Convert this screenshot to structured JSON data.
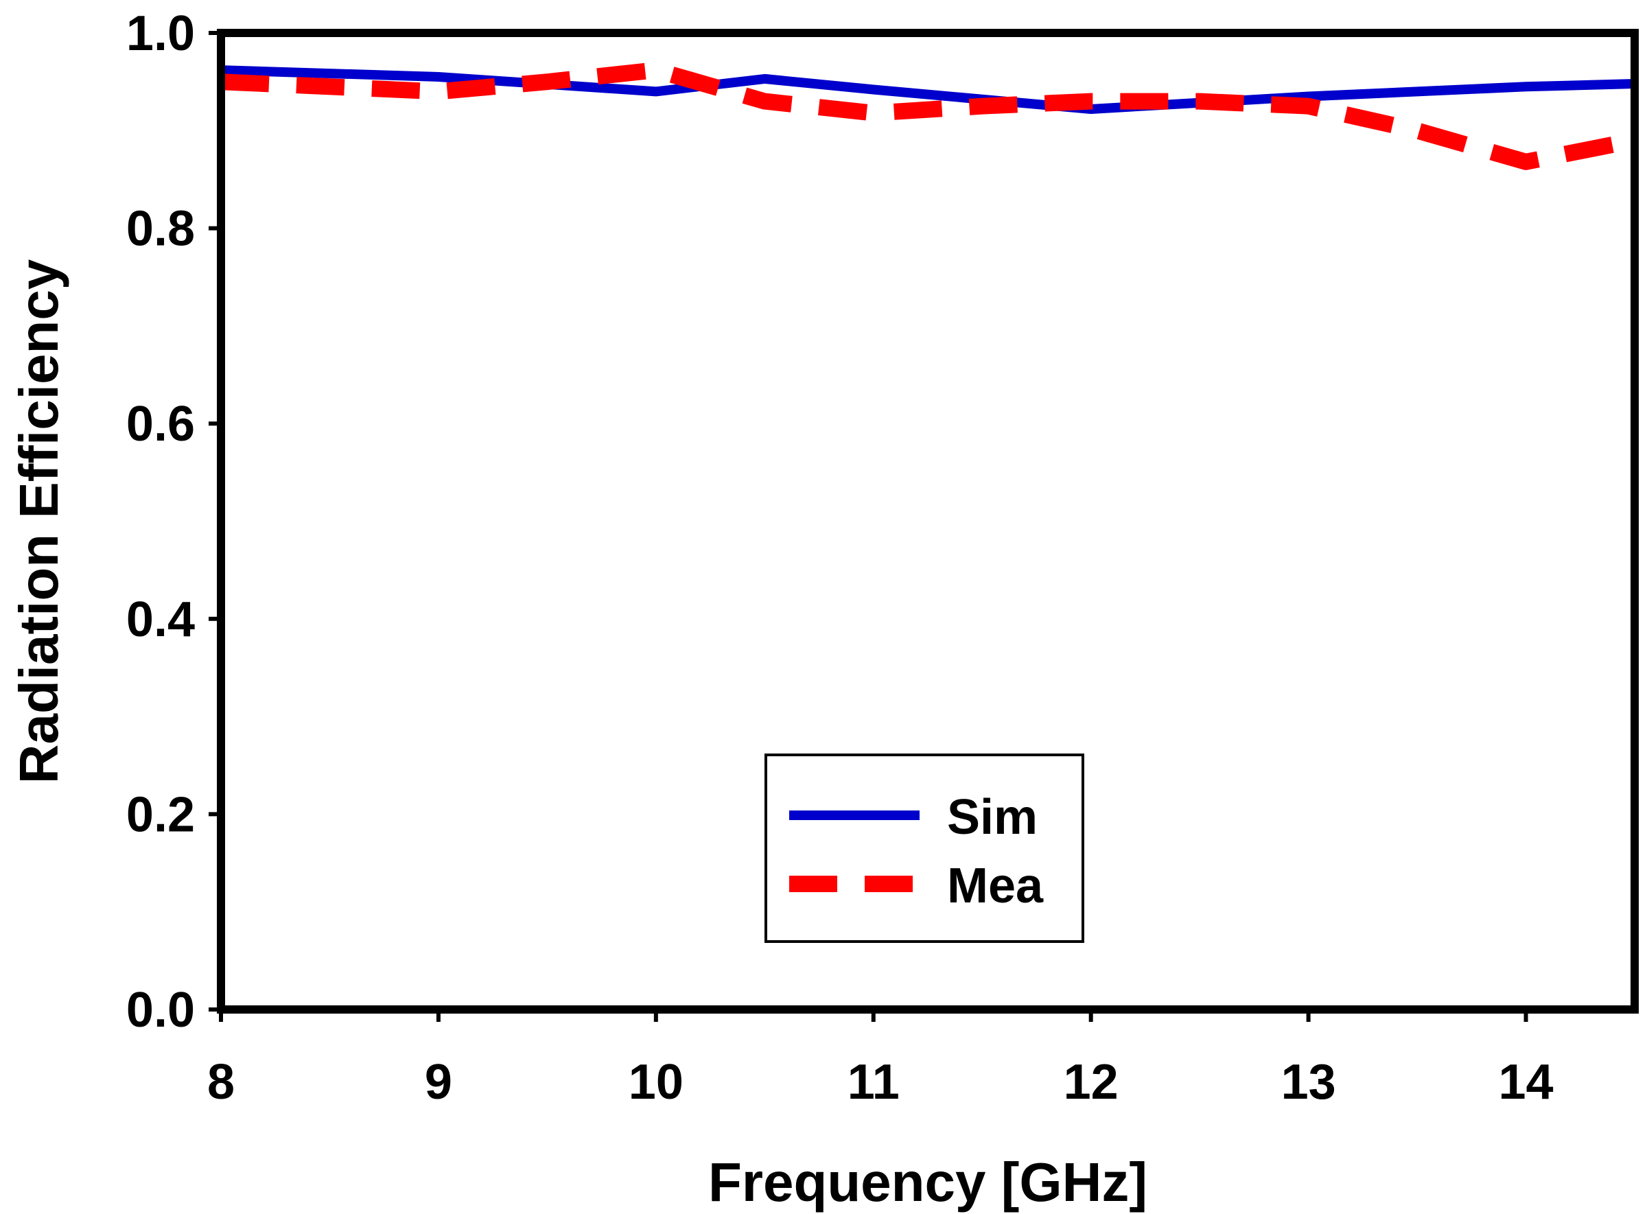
{
  "chart_data": {
    "type": "line",
    "title": "",
    "xlabel": "Frequency [GHz]",
    "ylabel": "Radiation Efficiency",
    "xlim": [
      8,
      14.5
    ],
    "ylim": [
      0,
      1
    ],
    "xticks": [
      8,
      9,
      10,
      11,
      12,
      13,
      14
    ],
    "xtick_labels": [
      "8",
      "9",
      "10",
      "11",
      "12",
      "13",
      "14"
    ],
    "yticks": [
      0,
      0.2,
      0.4,
      0.6,
      0.8,
      1.0
    ],
    "ytick_labels": [
      "0.0",
      "0.2",
      "0.4",
      "0.6",
      "0.8",
      "1.0"
    ],
    "grid": false,
    "legend_position": "bottom-center",
    "series": [
      {
        "name": "Sim",
        "color": "#0000cc",
        "style": "solid",
        "x": [
          8,
          9,
          10,
          10.5,
          11,
          12,
          13,
          14,
          14.5
        ],
        "y": [
          0.962,
          0.955,
          0.94,
          0.953,
          0.942,
          0.922,
          0.935,
          0.945,
          0.948
        ]
      },
      {
        "name": "Mea",
        "color": "#ff0000",
        "style": "dashed",
        "x": [
          8,
          9,
          9.5,
          10,
          10.5,
          11,
          11.5,
          12,
          12.5,
          13,
          13.5,
          14,
          14.5
        ],
        "y": [
          0.95,
          0.94,
          0.95,
          0.962,
          0.93,
          0.918,
          0.925,
          0.93,
          0.93,
          0.925,
          0.9,
          0.868,
          0.89
        ]
      }
    ]
  }
}
